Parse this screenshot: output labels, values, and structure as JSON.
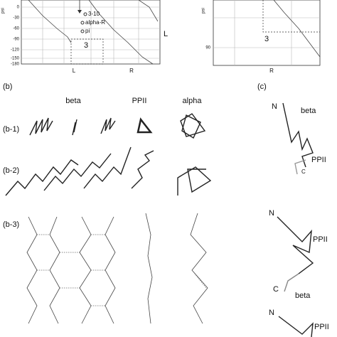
{
  "panel_a": {
    "left_plot": {
      "y_axis_label": "psi",
      "yticks": [
        "0",
        "-30",
        "-60",
        "-90",
        "-120",
        "-150",
        "-180"
      ],
      "annotations": [
        "3-10",
        "alpha-R",
        "pi",
        "3"
      ],
      "x_labels": [
        "L",
        "R"
      ],
      "side_label": "L"
    },
    "right_plot": {
      "y_axis_label": "psi",
      "yticks": [
        "90"
      ],
      "annotation": "3",
      "x_labels": [
        "R"
      ]
    }
  },
  "panel_b": {
    "label": "(b)",
    "column_headers": [
      "beta",
      "PPII",
      "alpha"
    ],
    "row_labels": [
      "(b-1)",
      "(b-2)",
      "(b-3)"
    ]
  },
  "panel_c": {
    "label": "(c)",
    "diagrams": [
      {
        "labels": [
          "N",
          "beta",
          "PPII",
          "C"
        ]
      },
      {
        "labels": [
          "N",
          "PPII",
          "C",
          "beta"
        ]
      },
      {
        "labels": [
          "N",
          "PPII"
        ]
      }
    ]
  }
}
